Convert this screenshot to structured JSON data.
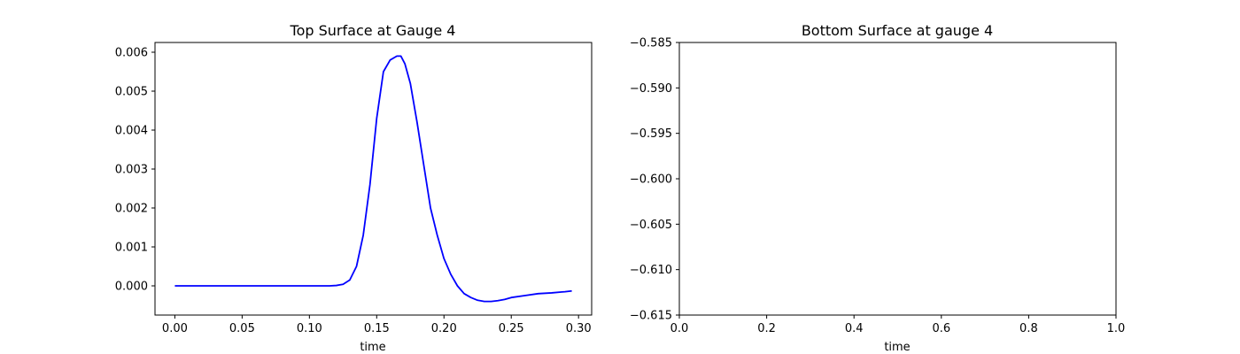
{
  "chart_data": [
    {
      "type": "line",
      "title": "Top Surface at Gauge 4",
      "xlabel": "time",
      "ylabel": "",
      "xlim": [
        -0.01475,
        0.30975
      ],
      "ylim": [
        -0.00075,
        0.00625
      ],
      "xticks": [
        0.0,
        0.05,
        0.1,
        0.15,
        0.2,
        0.25,
        0.3
      ],
      "xtick_labels": [
        "0.00",
        "0.05",
        "0.10",
        "0.15",
        "0.20",
        "0.25",
        "0.30"
      ],
      "yticks": [
        0.0,
        0.001,
        0.002,
        0.003,
        0.004,
        0.005,
        0.006
      ],
      "ytick_labels": [
        "0.000",
        "0.001",
        "0.002",
        "0.003",
        "0.004",
        "0.005",
        "0.006"
      ],
      "grid": false,
      "series": [
        {
          "color": "#0000ff",
          "x": [
            0.0,
            0.01,
            0.02,
            0.03,
            0.04,
            0.05,
            0.06,
            0.07,
            0.08,
            0.09,
            0.1,
            0.11,
            0.115,
            0.12,
            0.125,
            0.13,
            0.135,
            0.14,
            0.145,
            0.15,
            0.155,
            0.16,
            0.165,
            0.168,
            0.171,
            0.175,
            0.18,
            0.185,
            0.19,
            0.195,
            0.2,
            0.205,
            0.21,
            0.215,
            0.22,
            0.225,
            0.23,
            0.235,
            0.24,
            0.245,
            0.25,
            0.26,
            0.27,
            0.28,
            0.29,
            0.295
          ],
          "y": [
            0.0,
            0.0,
            0.0,
            0.0,
            0.0,
            0.0,
            0.0,
            0.0,
            0.0,
            0.0,
            0.0,
            0.0,
            0.0,
            1e-05,
            4e-05,
            0.00015,
            0.0005,
            0.0013,
            0.0026,
            0.0043,
            0.0055,
            0.0058,
            0.0059,
            0.0059,
            0.0057,
            0.0052,
            0.0042,
            0.0031,
            0.002,
            0.0013,
            0.0007,
            0.0003,
            0.0,
            -0.0002,
            -0.0003,
            -0.00037,
            -0.0004,
            -0.0004,
            -0.00038,
            -0.00035,
            -0.0003,
            -0.00025,
            -0.0002,
            -0.00018,
            -0.00015,
            -0.00013
          ]
        }
      ]
    },
    {
      "type": "line",
      "title": "Bottom Surface at gauge 4",
      "xlabel": "time",
      "ylabel": "",
      "xlim": [
        0.0,
        1.0
      ],
      "ylim": [
        -0.615,
        -0.585
      ],
      "xticks": [
        0.0,
        0.2,
        0.4,
        0.6,
        0.8,
        1.0
      ],
      "xtick_labels": [
        "0.0",
        "0.2",
        "0.4",
        "0.6",
        "0.8",
        "1.0"
      ],
      "yticks": [
        -0.615,
        -0.61,
        -0.605,
        -0.6,
        -0.595,
        -0.59,
        -0.585
      ],
      "ytick_labels": [
        "−0.615",
        "−0.610",
        "−0.605",
        "−0.600",
        "−0.595",
        "−0.590",
        "−0.585"
      ],
      "grid": false,
      "series": []
    }
  ]
}
